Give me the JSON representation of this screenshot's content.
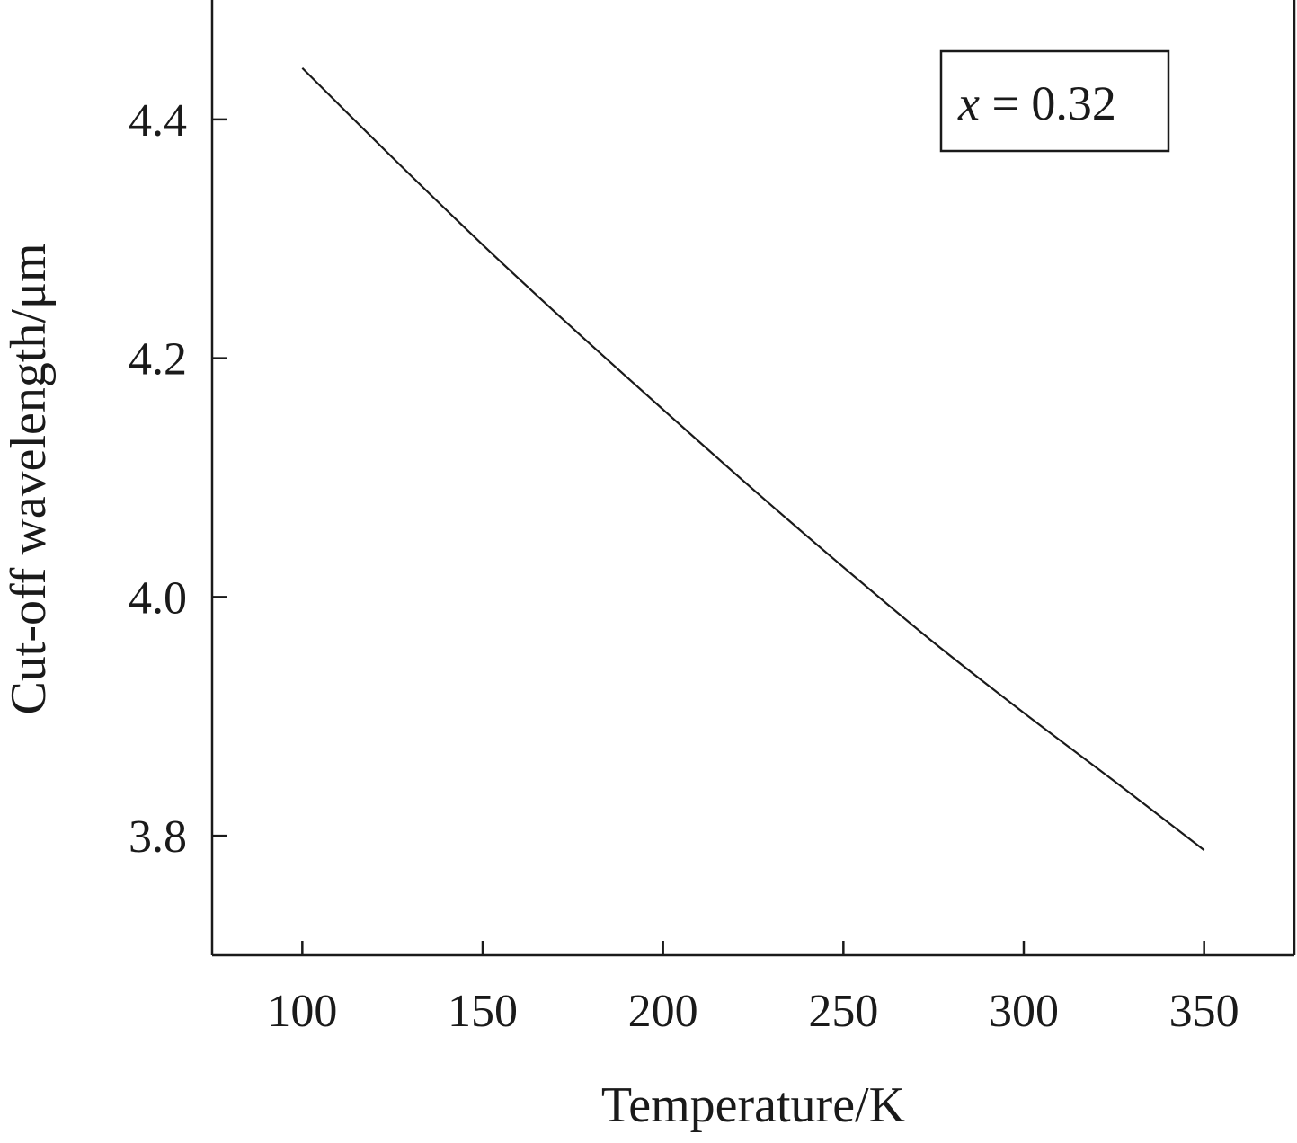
{
  "chart_data": {
    "type": "line",
    "title": "",
    "xlabel": "Temperature/K",
    "ylabel": "Cut-off wavelength/μm",
    "xlim": [
      75,
      375
    ],
    "ylim": [
      3.7,
      4.5
    ],
    "xticks": [
      100,
      150,
      200,
      250,
      300,
      350
    ],
    "yticks": [
      3.8,
      4.0,
      4.2,
      4.4
    ],
    "xtick_labels": [
      "100",
      "150",
      "200",
      "250",
      "300",
      "350"
    ],
    "ytick_labels": [
      "3.8",
      "4.0",
      "4.2",
      "4.4"
    ],
    "grid": false,
    "annotation": {
      "variable": "x",
      "text": " = 0.32",
      "position": "top-right"
    },
    "series": [
      {
        "x": [
          100,
          125,
          150,
          175,
          200,
          225,
          250,
          275,
          300,
          325,
          350
        ],
        "y": [
          4.443,
          4.368,
          4.295,
          4.225,
          4.157,
          4.09,
          4.025,
          3.962,
          3.903,
          3.846,
          3.788
        ],
        "color": "#1a1a1a"
      }
    ]
  }
}
